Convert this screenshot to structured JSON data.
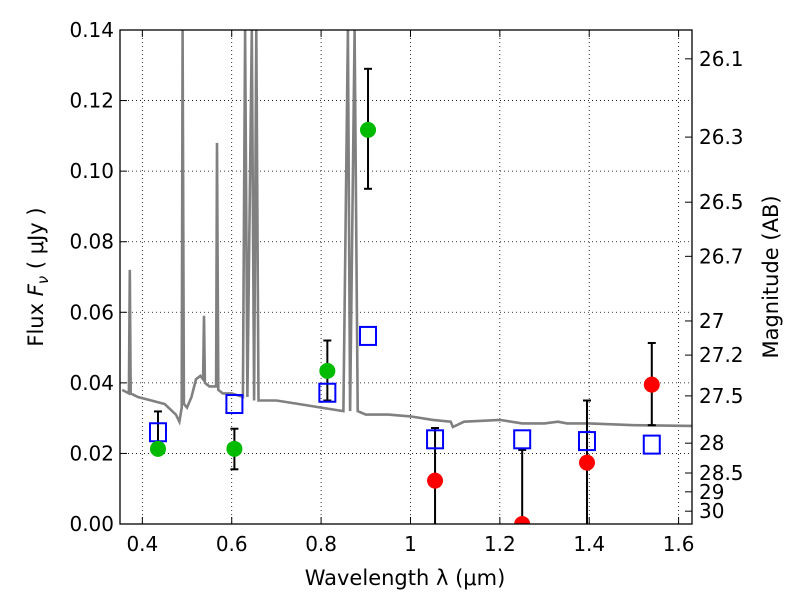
{
  "chart_data": {
    "type": "scatter",
    "title": "",
    "xlabel": "Wavelength  λ (μm)",
    "ylabel": "Flux  F_ν  ( μJy )",
    "y2label": "Magnitude (AB)",
    "xlim": [
      0.35,
      1.63
    ],
    "ylim": [
      0.0,
      0.14
    ],
    "grid": true,
    "grid_style": "dotted",
    "x_ticks": [
      {
        "value": 0.4,
        "label": "0.4"
      },
      {
        "value": 0.6,
        "label": "0.6"
      },
      {
        "value": 0.8,
        "label": "0.8"
      },
      {
        "value": 1.0,
        "label": "1"
      },
      {
        "value": 1.2,
        "label": "1.2"
      },
      {
        "value": 1.4,
        "label": "1.4"
      },
      {
        "value": 1.6,
        "label": "1.6"
      }
    ],
    "y_ticks": [
      {
        "value": 0.0,
        "label": "0.00"
      },
      {
        "value": 0.02,
        "label": "0.02"
      },
      {
        "value": 0.04,
        "label": "0.04"
      },
      {
        "value": 0.06,
        "label": "0.06"
      },
      {
        "value": 0.08,
        "label": "0.08"
      },
      {
        "value": 0.1,
        "label": "0.10"
      },
      {
        "value": 0.12,
        "label": "0.12"
      },
      {
        "value": 0.14,
        "label": "0.14"
      }
    ],
    "y2_ticks": [
      {
        "value": 26.1,
        "label": "26.1"
      },
      {
        "value": 26.3,
        "label": "26.3"
      },
      {
        "value": 26.5,
        "label": "26.5"
      },
      {
        "value": 26.7,
        "label": "26.7"
      },
      {
        "value": 27.0,
        "label": "27"
      },
      {
        "value": 27.2,
        "label": "27.2"
      },
      {
        "value": 27.5,
        "label": "27.5"
      },
      {
        "value": 28.0,
        "label": "28"
      },
      {
        "value": 28.5,
        "label": "28.5"
      },
      {
        "value": 29.0,
        "label": "29"
      },
      {
        "value": 30.0,
        "label": "30"
      }
    ],
    "colors": {
      "detections": "#00bb00",
      "upper_limits": "#ff0000",
      "model_photometry": "#0000ff",
      "model_spectrum": "#808080",
      "error_bars": "#000000"
    },
    "series": [
      {
        "marker": "circle",
        "color": "#00bb00",
        "points": [
          {
            "x": 0.435,
            "y": 0.0213,
            "yerr_low": 0.0213,
            "yerr_high": 0.0319
          },
          {
            "x": 0.606,
            "y": 0.0213,
            "yerr_low": 0.0155,
            "yerr_high": 0.027
          },
          {
            "x": 0.814,
            "y": 0.0434,
            "yerr_low": 0.035,
            "yerr_high": 0.052
          },
          {
            "x": 0.905,
            "y": 0.1117,
            "yerr_low": 0.095,
            "yerr_high": 0.129
          }
        ]
      },
      {
        "marker": "circle",
        "color": "#ff0000",
        "points": [
          {
            "x": 1.055,
            "y": 0.0123,
            "yerr_low": 0.0,
            "yerr_high": 0.0272
          },
          {
            "x": 1.25,
            "y": 0.0,
            "yerr_low": 0.0,
            "yerr_high": 0.021
          },
          {
            "x": 1.395,
            "y": 0.0174,
            "yerr_low": 0.0,
            "yerr_high": 0.035
          },
          {
            "x": 1.54,
            "y": 0.0395,
            "yerr_low": 0.028,
            "yerr_high": 0.0513
          }
        ]
      },
      {
        "marker": "open-square",
        "color": "#0000ff",
        "points": [
          {
            "x": 0.435,
            "y": 0.026
          },
          {
            "x": 0.606,
            "y": 0.034
          },
          {
            "x": 0.814,
            "y": 0.0372
          },
          {
            "x": 0.905,
            "y": 0.0533
          },
          {
            "x": 1.055,
            "y": 0.024
          },
          {
            "x": 1.25,
            "y": 0.024
          },
          {
            "x": 1.395,
            "y": 0.0235
          },
          {
            "x": 1.54,
            "y": 0.0225
          }
        ]
      },
      {
        "marker": "line",
        "color": "#808080",
        "points": [
          [
            0.355,
            0.038
          ],
          [
            0.37,
            0.037
          ],
          [
            0.372,
            0.072
          ],
          [
            0.374,
            0.037
          ],
          [
            0.39,
            0.036
          ],
          [
            0.42,
            0.035
          ],
          [
            0.45,
            0.034
          ],
          [
            0.475,
            0.031
          ],
          [
            0.483,
            0.029
          ],
          [
            0.488,
            0.033
          ],
          [
            0.49,
            0.14
          ],
          [
            0.493,
            0.034
          ],
          [
            0.5,
            0.033
          ],
          [
            0.51,
            0.036
          ],
          [
            0.52,
            0.041
          ],
          [
            0.53,
            0.042
          ],
          [
            0.536,
            0.041
          ],
          [
            0.538,
            0.059
          ],
          [
            0.54,
            0.04
          ],
          [
            0.55,
            0.039
          ],
          [
            0.565,
            0.039
          ],
          [
            0.567,
            0.108
          ],
          [
            0.57,
            0.038
          ],
          [
            0.58,
            0.037
          ],
          [
            0.6,
            0.037
          ],
          [
            0.625,
            0.036
          ],
          [
            0.63,
            0.14
          ],
          [
            0.635,
            0.036
          ],
          [
            0.645,
            0.14
          ],
          [
            0.65,
            0.035
          ],
          [
            0.655,
            0.14
          ],
          [
            0.66,
            0.035
          ],
          [
            0.7,
            0.035
          ],
          [
            0.75,
            0.034
          ],
          [
            0.8,
            0.033
          ],
          [
            0.85,
            0.032
          ],
          [
            0.86,
            0.14
          ],
          [
            0.865,
            0.032
          ],
          [
            0.875,
            0.14
          ],
          [
            0.882,
            0.032
          ],
          [
            0.9,
            0.031
          ],
          [
            0.95,
            0.031
          ],
          [
            1.0,
            0.0305
          ],
          [
            1.05,
            0.0295
          ],
          [
            1.09,
            0.029
          ],
          [
            1.095,
            0.0275
          ],
          [
            1.12,
            0.029
          ],
          [
            1.2,
            0.0295
          ],
          [
            1.25,
            0.0285
          ],
          [
            1.3,
            0.0285
          ],
          [
            1.33,
            0.029
          ],
          [
            1.35,
            0.0285
          ],
          [
            1.4,
            0.0285
          ],
          [
            1.5,
            0.028
          ],
          [
            1.63,
            0.0278
          ]
        ]
      }
    ]
  }
}
